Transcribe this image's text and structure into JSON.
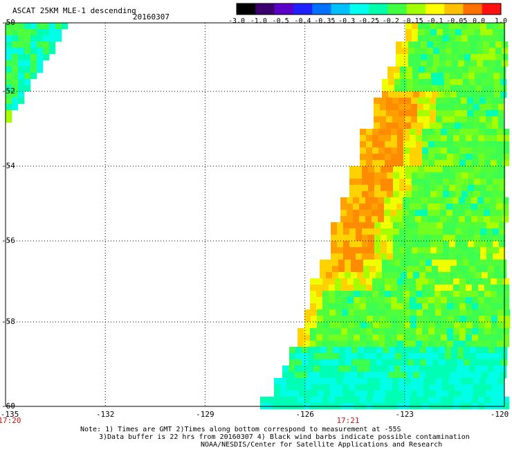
{
  "header": {
    "title": "ASCAT 25KM MLE-1 descending",
    "date": "20160307"
  },
  "colorbar": {
    "labels": [
      "-3.0",
      "-1.0",
      "-0.5",
      "-0.4",
      "-0.35",
      "-0.3",
      "-0.25",
      "-0.2",
      "-0.15",
      "-0.1",
      "-0.05",
      "0.0",
      "1.0"
    ],
    "colors": [
      "#000000",
      "#3b006e",
      "#5a00c8",
      "#1f1fff",
      "#0070ff",
      "#00c0ff",
      "#00ffee",
      "#00ffaa",
      "#40ff40",
      "#a0ff00",
      "#ffff00",
      "#ffc000",
      "#ff7000",
      "#ff1010"
    ]
  },
  "map": {
    "y_axis_labels": [
      "-50",
      "-52",
      "-54",
      "-56",
      "-58",
      "-60"
    ],
    "x_axis_labels": [
      "-135",
      "-132",
      "-129",
      "-126",
      "-123",
      "-120"
    ],
    "time_labels": [
      "17:20",
      "17:21"
    ],
    "lon_range": [
      -135,
      -120
    ],
    "lat_range": [
      -60,
      -50
    ]
  },
  "notes": {
    "line1": "Note: 1) Times are GMT 2)Times along bottom correspond to measurement at -55S",
    "line2": "3)Data buffer is 22 hrs from 20160307 4) Black wind barbs indicate possible contamination",
    "line3": "NOAA/NESDIS/Center for Satellite Applications and Research"
  }
}
